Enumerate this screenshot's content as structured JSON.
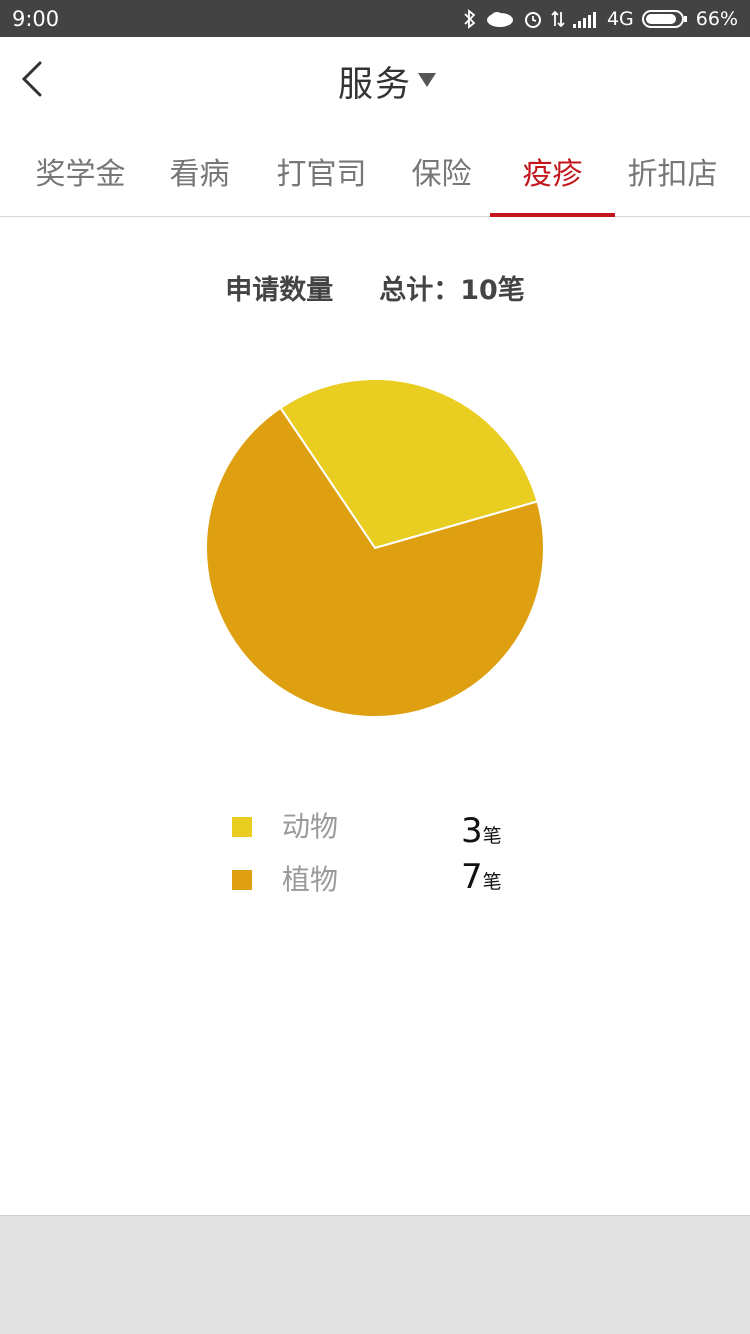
{
  "status_bar": {
    "time": "9:00",
    "network": "4G",
    "battery": "66%",
    "icons": [
      "bluetooth-icon",
      "cloud-icon",
      "alarm-icon",
      "data-transfer-icon",
      "signal-icon",
      "battery-icon"
    ]
  },
  "header": {
    "title": "服务",
    "back_icon": "back-arrow-icon",
    "dropdown_icon": "dropdown-triangle-icon"
  },
  "tabs": [
    {
      "label": "奖学金",
      "active": false
    },
    {
      "label": "看病",
      "active": false
    },
    {
      "label": "打官司",
      "active": false
    },
    {
      "label": "保险",
      "active": false
    },
    {
      "label": "疫疹",
      "active": true
    },
    {
      "label": "折扣店",
      "active": false
    }
  ],
  "summary": {
    "label": "申请数量",
    "total": "总计：10笔"
  },
  "legend": [
    {
      "name": "动物",
      "count": "3",
      "unit": "笔",
      "color": "#e9cd20"
    },
    {
      "name": "植物",
      "count": "7",
      "unit": "笔",
      "color": "#de9f10"
    }
  ],
  "chart_data": {
    "type": "pie",
    "slices": [
      {
        "label": "动物",
        "value": 3,
        "color": "#e9cd20"
      },
      {
        "label": "植物",
        "value": 7,
        "color": "#de9f10"
      }
    ]
  },
  "colors": {
    "status_bar": "#434343",
    "accent": "#c3161c",
    "tab_text": "#777777",
    "bottom_bar": "#e2e2e2"
  }
}
